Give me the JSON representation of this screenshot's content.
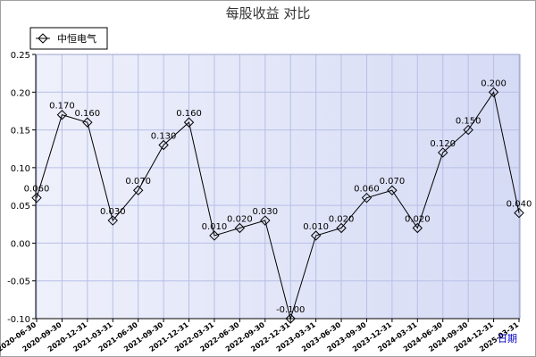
{
  "chart_data": {
    "type": "line",
    "title": "每股收益  对比",
    "xlabel": "日期",
    "ylabel": "",
    "ylim": [
      -0.1,
      0.25
    ],
    "yticks": [
      "0.25",
      "0.20",
      "0.15",
      "0.10",
      "0.05",
      "0.00",
      "-0.05",
      "-0.10"
    ],
    "grid": true,
    "legend_position": "top-left",
    "x": [
      "2020-06-30",
      "2020-09-30",
      "2020-12-31",
      "2021-03-31",
      "2021-06-30",
      "2021-09-30",
      "2021-12-31",
      "2022-03-31",
      "2022-06-30",
      "2022-09-30",
      "2022-12-31",
      "2023-03-31",
      "2023-06-30",
      "2023-09-30",
      "2023-12-31",
      "2024-03-31",
      "2024-06-30",
      "2024-09-30",
      "2024-12-31",
      "2025-03-31"
    ],
    "x_tick_labels": [
      "2020-06-30",
      "2020-09-30",
      "2020-12-31",
      "2021-03-31",
      "2021-06-30",
      "2021-09-30",
      "2021-12-31",
      "2022-03-31",
      "2022-06-30",
      "2022-09-30",
      "2022-12-31",
      "2023-03-31",
      "2023-06-30",
      "2023-09-30",
      "2023-12-31",
      "2024-03-31",
      "2024-06-30",
      "2024-09-30",
      "2024-12-31",
      "2025-03-31"
    ],
    "series": [
      {
        "name": "中恒电气",
        "color": "#000000",
        "values": [
          0.06,
          0.17,
          0.16,
          0.03,
          0.07,
          0.13,
          0.16,
          0.01,
          0.02,
          0.03,
          -0.1,
          0.01,
          0.02,
          0.06,
          0.07,
          0.02,
          0.12,
          0.15,
          0.2,
          0.04
        ],
        "labels": [
          "0.060",
          "0.170",
          "0.160",
          "0.030",
          "0.070",
          "0.130",
          "0.160",
          "0.010",
          "0.020",
          "0.030",
          "-0.100",
          "0.010",
          "0.020",
          "0.060",
          "0.070",
          "0.020",
          "0.120",
          "0.150",
          "0.200",
          "0.040"
        ]
      }
    ],
    "colors": {
      "plot_bg": "#dfe3f7",
      "grid": "#b8bfe6",
      "axis": "#000000"
    }
  }
}
